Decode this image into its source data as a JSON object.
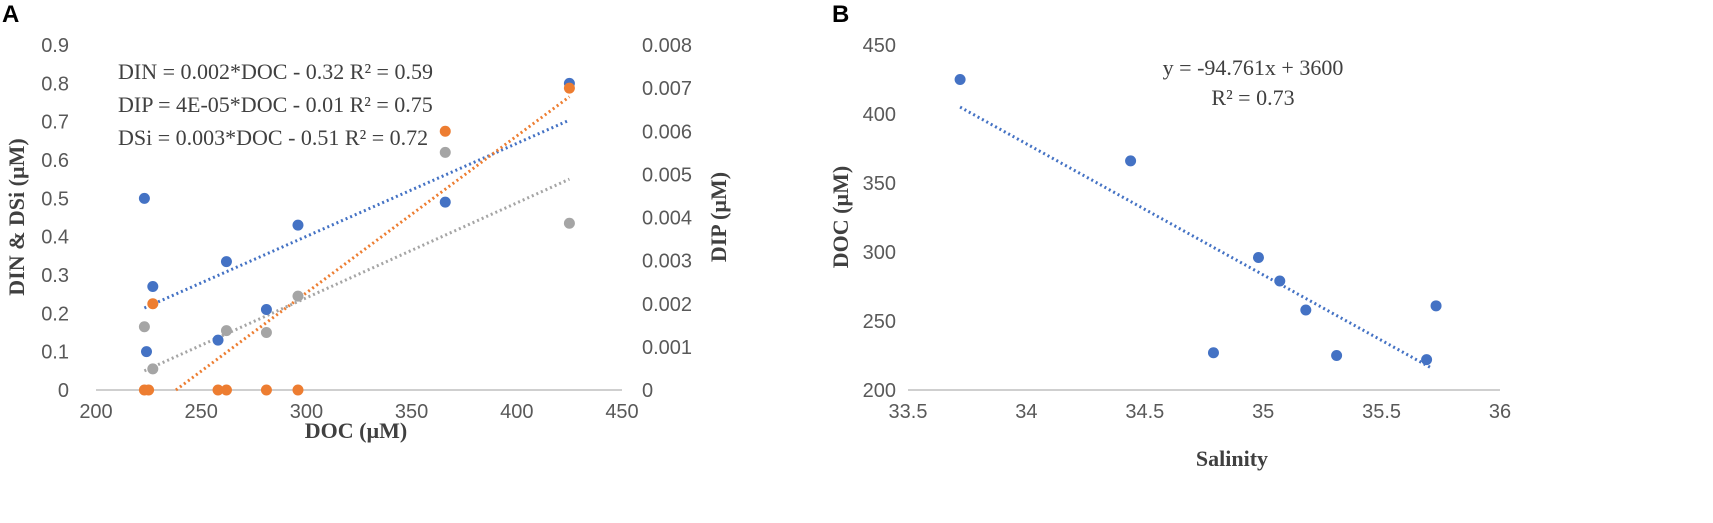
{
  "colors": {
    "din": "#4472C4",
    "dip": "#ED7D31",
    "dsi": "#A5A5A5",
    "axis": "#BFBFBF",
    "text": "#404040"
  },
  "chart_data": [
    {
      "panel": "A",
      "type": "scatter",
      "xlabel": "DOC (µM)",
      "ylabel": "DIN & DSi (µM)",
      "y2label": "DIP (µM)",
      "xlim": [
        200,
        450
      ],
      "ylim": [
        0,
        0.9
      ],
      "y2lim": [
        0,
        0.008
      ],
      "xticks": [
        "200",
        "250",
        "300",
        "350",
        "400",
        "450"
      ],
      "yticks": [
        "0",
        "0.1",
        "0.2",
        "0.3",
        "0.4",
        "0.5",
        "0.6",
        "0.7",
        "0.8",
        "0.9"
      ],
      "y2ticks": [
        "0",
        "0.001",
        "0.002",
        "0.003",
        "0.004",
        "0.005",
        "0.006",
        "0.007",
        "0.008"
      ],
      "equations": [
        "DIN = 0.002*DOC - 0.32 R² = 0.59",
        "DIP = 4E-05*DOC - 0.01 R² = 0.75",
        "DSi = 0.003*DOC - 0.51 R² = 0.72"
      ],
      "series": [
        {
          "key": "din",
          "axis": "left",
          "points": [
            [
              223,
              0.5
            ],
            [
              224,
              0.1
            ],
            [
              227,
              0.27
            ],
            [
              258,
              0.13
            ],
            [
              262,
              0.335
            ],
            [
              281,
              0.21
            ],
            [
              296,
              0.43
            ],
            [
              366,
              0.49
            ],
            [
              425,
              0.8
            ]
          ],
          "trend": [
            [
              223,
              0.214
            ],
            [
              425,
              0.704
            ]
          ]
        },
        {
          "key": "dip",
          "axis": "right",
          "points": [
            [
              223,
              0
            ],
            [
              225,
              0
            ],
            [
              227,
              0.002
            ],
            [
              258,
              0
            ],
            [
              262,
              0
            ],
            [
              281,
              0
            ],
            [
              296,
              0
            ],
            [
              366,
              0.006
            ],
            [
              425,
              0.007
            ]
          ],
          "trend": [
            [
              238,
              0
            ],
            [
              425,
              0.0068
            ]
          ]
        },
        {
          "key": "dsi",
          "axis": "left",
          "points": [
            [
              223,
              0.165
            ],
            [
              227,
              0.055
            ],
            [
              262,
              0.155
            ],
            [
              281,
              0.15
            ],
            [
              296,
              0.245
            ],
            [
              366,
              0.62
            ],
            [
              425,
              0.435
            ]
          ],
          "trend": [
            [
              223,
              0.05
            ],
            [
              425,
              0.55
            ]
          ]
        }
      ]
    },
    {
      "panel": "B",
      "type": "scatter",
      "xlabel": "Salinity",
      "ylabel": "DOC (µM)",
      "xlim": [
        33.5,
        36
      ],
      "ylim": [
        200,
        450
      ],
      "xticks": [
        "33.5",
        "34",
        "34.5",
        "35",
        "35.5",
        "36"
      ],
      "yticks": [
        "200",
        "250",
        "300",
        "350",
        "400",
        "450"
      ],
      "equations": [
        "y = -94.761x + 3600",
        "R² = 0.73"
      ],
      "series": [
        {
          "key": "din",
          "points": [
            [
              33.72,
              425
            ],
            [
              34.44,
              366
            ],
            [
              34.79,
              227
            ],
            [
              34.98,
              296
            ],
            [
              35.07,
              279
            ],
            [
              35.18,
              258
            ],
            [
              35.31,
              225
            ],
            [
              35.69,
              222
            ],
            [
              35.73,
              261
            ]
          ],
          "trend": [
            [
              33.72,
              405
            ],
            [
              35.71,
              216
            ]
          ]
        }
      ]
    }
  ]
}
